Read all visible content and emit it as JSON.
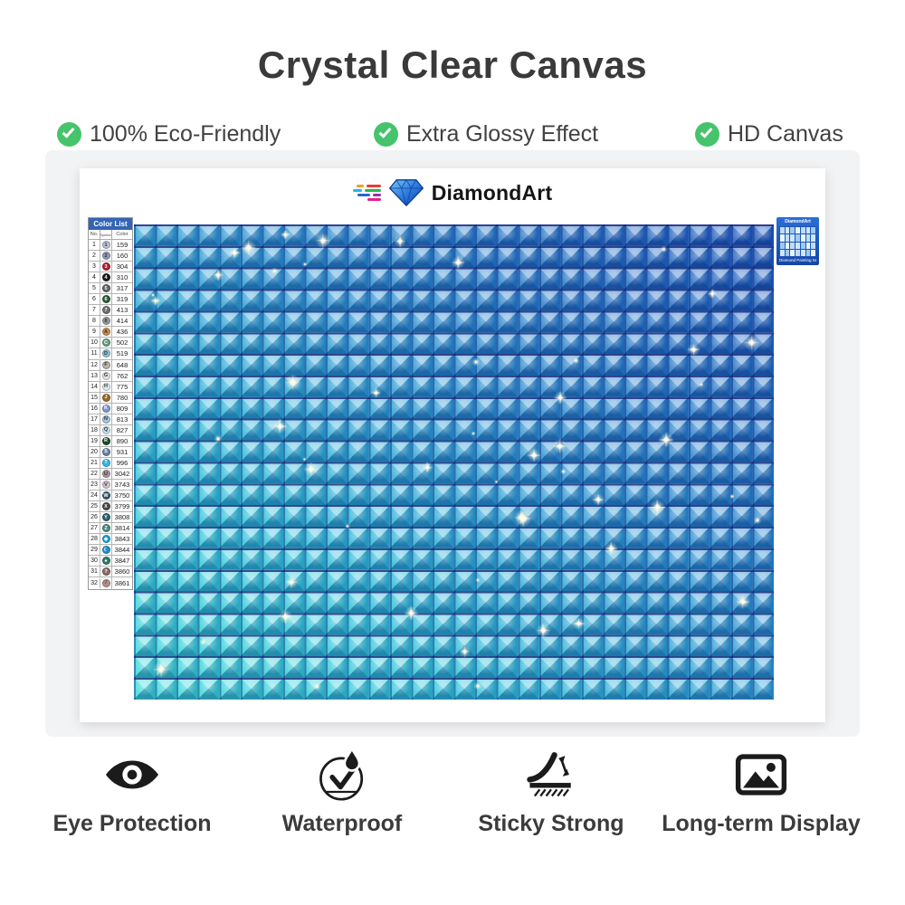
{
  "title": "Crystal Clear Canvas",
  "accent_green": "#46c46c",
  "features_top": [
    {
      "label": "100% Eco-Friendly"
    },
    {
      "label": "Extra Glossy Effect"
    },
    {
      "label": "HD Canvas"
    }
  ],
  "canvas": {
    "brand": "DiamondArt",
    "grid_gradient": {
      "bottom_left": "#3cdcda",
      "top_right": "#1c55bb",
      "grout": "#08166e"
    },
    "color_list": {
      "title": "Color List",
      "headers": [
        "No.",
        "Symbol",
        "Color"
      ],
      "rows": [
        {
          "no": 1,
          "sym": "1",
          "code": "159",
          "hex": "#bcc0d4"
        },
        {
          "no": 2,
          "sym": "2",
          "code": "160",
          "hex": "#8f9ab8"
        },
        {
          "no": 3,
          "sym": "3",
          "code": "304",
          "hex": "#b02031"
        },
        {
          "no": 4,
          "sym": "4",
          "code": "310",
          "hex": "#1a1a1a"
        },
        {
          "no": 5,
          "sym": "5",
          "code": "317",
          "hex": "#606068"
        },
        {
          "no": 6,
          "sym": "6",
          "code": "319",
          "hex": "#2e5c34"
        },
        {
          "no": 7,
          "sym": "7",
          "code": "413",
          "hex": "#6e6e72"
        },
        {
          "no": 8,
          "sym": "8",
          "code": "414",
          "hex": "#9a9a9e"
        },
        {
          "no": 9,
          "sym": "A",
          "code": "436",
          "hex": "#c98e4e"
        },
        {
          "no": 10,
          "sym": "C",
          "code": "502",
          "hex": "#63a07f"
        },
        {
          "no": 11,
          "sym": "D",
          "code": "519",
          "hex": "#8fc0d8"
        },
        {
          "no": 12,
          "sym": "F",
          "code": "648",
          "hex": "#b8b2a7"
        },
        {
          "no": 13,
          "sym": "G",
          "code": "762",
          "hex": "#e4e4e6"
        },
        {
          "no": 14,
          "sym": "H",
          "code": "775",
          "hex": "#dcebf4"
        },
        {
          "no": 15,
          "sym": "J",
          "code": "780",
          "hex": "#9a6a28"
        },
        {
          "no": 16,
          "sym": "K",
          "code": "809",
          "hex": "#7e96cc"
        },
        {
          "no": 17,
          "sym": "N",
          "code": "813",
          "hex": "#a6c6dd"
        },
        {
          "no": 18,
          "sym": "Q",
          "code": "827",
          "hex": "#c4dff0"
        },
        {
          "no": 19,
          "sym": "R",
          "code": "890",
          "hex": "#1d4a28"
        },
        {
          "no": 20,
          "sym": "S",
          "code": "931",
          "hex": "#68839c"
        },
        {
          "no": 21,
          "sym": "T",
          "code": "996",
          "hex": "#2eb8e6"
        },
        {
          "no": 22,
          "sym": "U",
          "code": "3042",
          "hex": "#a893a0"
        },
        {
          "no": 23,
          "sym": "V",
          "code": "3743",
          "hex": "#cfc4cf"
        },
        {
          "no": 24,
          "sym": "W",
          "code": "3750",
          "hex": "#33566c"
        },
        {
          "no": 25,
          "sym": "X",
          "code": "3799",
          "hex": "#47474d"
        },
        {
          "no": 26,
          "sym": "Y",
          "code": "3808",
          "hex": "#2f6068"
        },
        {
          "no": 27,
          "sym": "Z",
          "code": "3814",
          "hex": "#4a8a7a"
        },
        {
          "no": 28,
          "sym": "◆",
          "code": "3843",
          "hex": "#1ba0d8"
        },
        {
          "no": 29,
          "sym": "☾",
          "code": "3844",
          "hex": "#2090c8"
        },
        {
          "no": 30,
          "sym": "♠",
          "code": "3847",
          "hex": "#2e7a6a"
        },
        {
          "no": 31,
          "sym": "?",
          "code": "3860",
          "hex": "#8a6a62"
        },
        {
          "no": 32,
          "sym": "/",
          "code": "3861",
          "hex": "#b29089"
        }
      ]
    },
    "mini_card": {
      "brand": "DiamondArt",
      "caption": "Diamond Painting Set"
    }
  },
  "features_bottom": [
    {
      "icon": "eye-icon",
      "label": "Eye Protection"
    },
    {
      "icon": "waterproof-icon",
      "label": "Waterproof"
    },
    {
      "icon": "sticky-strong-icon",
      "label": "Sticky Strong"
    },
    {
      "icon": "long-term-display-icon",
      "label": "Long-term Display"
    }
  ]
}
